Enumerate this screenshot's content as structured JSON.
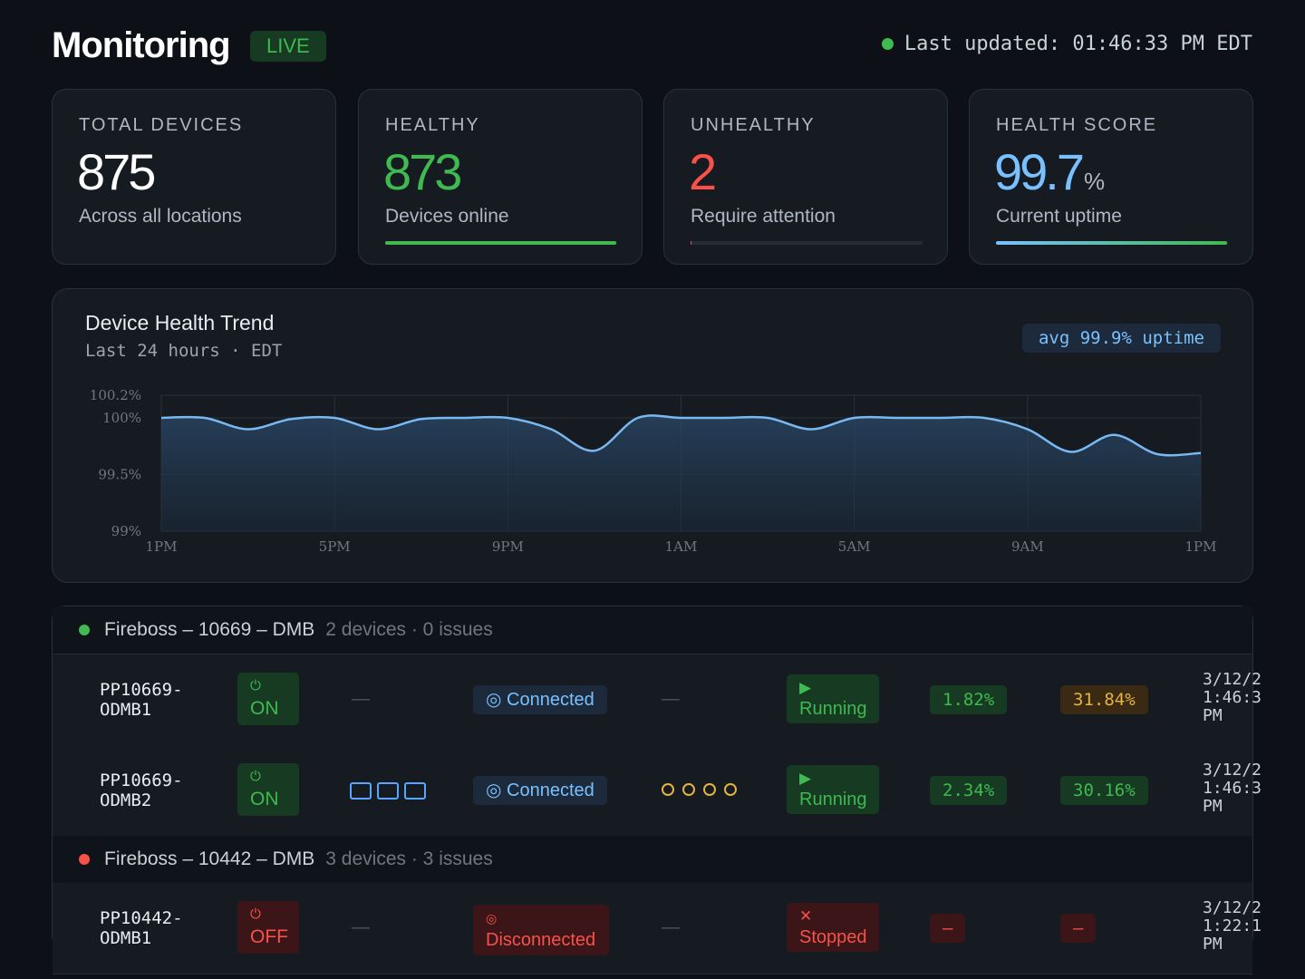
{
  "header": {
    "title": "Monitoring",
    "live_label": "LIVE",
    "last_updated": "Last updated: 01:46:33 PM EDT"
  },
  "stats": [
    {
      "label": "TOTAL DEVICES",
      "value": "875",
      "unit": "",
      "sub": "Across all locations",
      "color": "#ffffff",
      "bar_fraction": null
    },
    {
      "label": "HEALTHY",
      "value": "873",
      "unit": "",
      "sub": "Devices online",
      "color": "#3fb950",
      "bar_fraction": 0.998
    },
    {
      "label": "UNHEALTHY",
      "value": "2",
      "unit": "",
      "sub": "Require attention",
      "color": "#f85149",
      "bar_fraction": 0.002
    },
    {
      "label": "HEALTH SCORE",
      "value": "99.7",
      "unit": "%",
      "sub": "Current uptime",
      "color": "#79c0ff",
      "bar_fraction": 0.997
    }
  ],
  "trend": {
    "title": "Device Health Trend",
    "subtitle": "Last 24 hours · EDT",
    "avg_badge": "avg 99.9% uptime"
  },
  "chart_data": {
    "type": "area",
    "title": "Device Health Trend",
    "xlabel": "",
    "ylabel": "",
    "ylim": [
      99,
      100.2
    ],
    "y_ticks": [
      "100.2%",
      "100%",
      "99.5%",
      "99%"
    ],
    "y_tick_values": [
      100.2,
      100,
      99.5,
      99
    ],
    "x_ticks": [
      "1PM",
      "5PM",
      "9PM",
      "1AM",
      "5AM",
      "9AM",
      "1PM"
    ],
    "x_hours": [
      0,
      4,
      8,
      12,
      16,
      20,
      24
    ],
    "series": [
      {
        "name": "Uptime",
        "x": [
          0,
          1,
          2,
          3,
          4,
          5,
          6,
          7,
          8,
          9,
          10,
          11,
          12,
          13,
          14,
          15,
          16,
          17,
          18,
          19,
          20,
          21,
          22,
          23,
          24
        ],
        "values": [
          100.0,
          100.0,
          99.9,
          99.99,
          100.0,
          99.9,
          99.99,
          100.0,
          100.0,
          99.9,
          99.71,
          100.0,
          100.0,
          100.0,
          100.0,
          99.9,
          100.0,
          100.0,
          100.0,
          100.0,
          99.9,
          99.7,
          99.85,
          99.68,
          99.69
        ]
      }
    ]
  },
  "groups": [
    {
      "name": "Fireboss – 10669 – DMB",
      "meta": "2 devices · 0 issues",
      "status_color": "#3fb950",
      "devices": [
        {
          "id_line1": "PP10669-",
          "id_line2": "ODMB1",
          "power": "ON",
          "power_icon": "⏻",
          "col3": "—",
          "connection": "Connected",
          "conn_icon": "◎",
          "col5": "—",
          "state": "Running",
          "state_icon": "▶",
          "pct1": "1.82%",
          "pct2": "31.84%",
          "date_l1": "3/12/2",
          "date_l2": "1:46:3",
          "date_l3": "PM"
        },
        {
          "id_line1": "PP10669-",
          "id_line2": "ODMB2",
          "power": "ON",
          "power_icon": "⏻",
          "col3": "",
          "connection": "Connected",
          "conn_icon": "◎",
          "col5": "",
          "state": "Running",
          "state_icon": "▶",
          "pct1": "2.34%",
          "pct2": "30.16%",
          "date_l1": "3/12/2",
          "date_l2": "1:46:3",
          "date_l3": "PM"
        }
      ]
    },
    {
      "name": "Fireboss – 10442 – DMB",
      "meta": "3 devices · 3 issues",
      "status_color": "#f85149",
      "devices": [
        {
          "id_line1": "PP10442-",
          "id_line2": "ODMB1",
          "power": "OFF",
          "power_icon": "⏻",
          "col3": "—",
          "connection": "Disconnected",
          "conn_icon": "◎",
          "col5": "—",
          "state": "Stopped",
          "state_icon": "✕",
          "pct1": "–",
          "pct2": "–",
          "date_l1": "3/12/2",
          "date_l2": "1:22:1",
          "date_l3": "PM"
        }
      ]
    }
  ]
}
